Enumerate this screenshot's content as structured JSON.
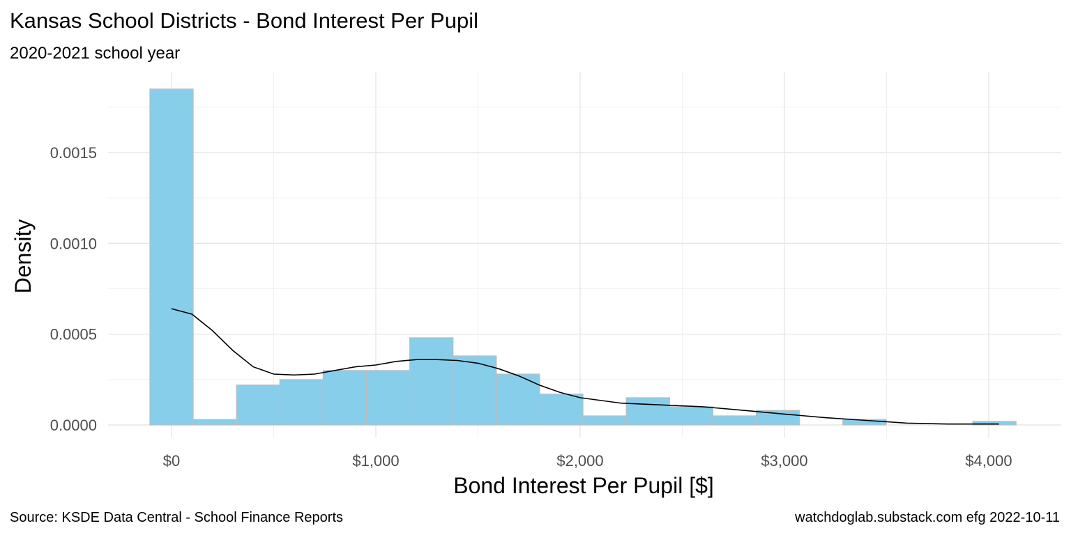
{
  "chart_data": {
    "type": "histogram",
    "title": "Kansas School Districts - Bond Interest Per Pupil",
    "subtitle": "2020-2021 school year",
    "xlabel": "Bond Interest Per Pupil [$]",
    "ylabel": "Density",
    "caption_left": "Source:  KSDE Data Central - School Finance Reports",
    "caption_right": "watchdoglab.substack.com  efg 2022-10-11",
    "xlim": [
      -300,
      4300
    ],
    "ylim": [
      0,
      0.00195
    ],
    "x_ticks": [
      0,
      1000,
      2000,
      3000,
      4000
    ],
    "x_tick_labels": [
      "$0",
      "$1,000",
      "$2,000",
      "$3,000",
      "$4,000"
    ],
    "y_ticks": [
      0,
      0.0005,
      0.001,
      0.0015
    ],
    "y_tick_labels": [
      "0.0000",
      "0.0005",
      "0.0010",
      "0.0015"
    ],
    "grid": true,
    "bar_color": "#87CEEB",
    "bar_border_color": "#BEBEBE",
    "line_color": "#000000",
    "bins": [
      {
        "x0": -106,
        "x1": 106,
        "density": 0.00185
      },
      {
        "x0": 106,
        "x1": 318,
        "density": 3e-05
      },
      {
        "x0": 318,
        "x1": 530,
        "density": 0.00022
      },
      {
        "x0": 530,
        "x1": 742,
        "density": 0.00025
      },
      {
        "x0": 742,
        "x1": 954,
        "density": 0.0003
      },
      {
        "x0": 954,
        "x1": 1166,
        "density": 0.0003
      },
      {
        "x0": 1166,
        "x1": 1378,
        "density": 0.00048
      },
      {
        "x0": 1378,
        "x1": 1590,
        "density": 0.00038
      },
      {
        "x0": 1590,
        "x1": 1802,
        "density": 0.00028
      },
      {
        "x0": 1802,
        "x1": 2014,
        "density": 0.00017
      },
      {
        "x0": 2014,
        "x1": 2226,
        "density": 5e-05
      },
      {
        "x0": 2226,
        "x1": 2438,
        "density": 0.00015
      },
      {
        "x0": 2438,
        "x1": 2650,
        "density": 0.0001
      },
      {
        "x0": 2650,
        "x1": 2862,
        "density": 5e-05
      },
      {
        "x0": 2862,
        "x1": 3074,
        "density": 8e-05
      },
      {
        "x0": 3074,
        "x1": 3286,
        "density": 0.0
      },
      {
        "x0": 3286,
        "x1": 3498,
        "density": 3e-05
      },
      {
        "x0": 3498,
        "x1": 3710,
        "density": 0.0
      },
      {
        "x0": 3710,
        "x1": 3922,
        "density": 0.0
      },
      {
        "x0": 3922,
        "x1": 4134,
        "density": 2e-05
      }
    ],
    "density_curve": {
      "x": [
        0,
        100,
        200,
        300,
        400,
        500,
        600,
        700,
        800,
        900,
        1000,
        1100,
        1200,
        1300,
        1400,
        1500,
        1600,
        1700,
        1800,
        1900,
        2000,
        2200,
        2400,
        2600,
        2800,
        3000,
        3200,
        3400,
        3600,
        3800,
        4000,
        4050
      ],
      "y": [
        0.00064,
        0.00061,
        0.00052,
        0.00041,
        0.00032,
        0.00028,
        0.000275,
        0.00028,
        0.0003,
        0.00032,
        0.00033,
        0.00035,
        0.00036,
        0.00036,
        0.000355,
        0.00034,
        0.00031,
        0.00027,
        0.00022,
        0.00018,
        0.00015,
        0.00012,
        0.00011,
        0.0001,
        8e-05,
        6e-05,
        4e-05,
        2.5e-05,
        1e-05,
        5e-06,
        5e-06,
        5e-06
      ]
    }
  }
}
